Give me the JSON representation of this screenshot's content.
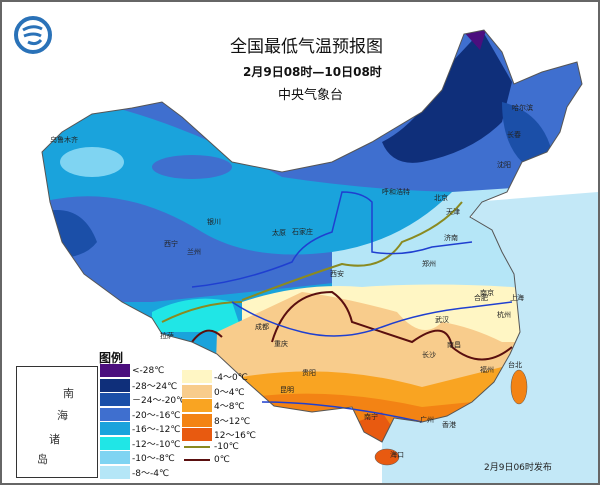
{
  "header": {
    "title": "全国最低气温预报图",
    "period": "2月9日08时—10日08时",
    "agency": "中央气象台"
  },
  "logo": {
    "icon": "cma-logo-icon",
    "color": "#2a72b8"
  },
  "legend": {
    "title": "图例",
    "items": [
      {
        "label": "<-28℃",
        "color": "#4b0f7e"
      },
      {
        "label": "-28～24℃",
        "color": "#0f2f7a"
      },
      {
        "label": "－24～-20℃",
        "color": "#1b4fa8"
      },
      {
        "label": "-20～-16℃",
        "color": "#3f6fcf"
      },
      {
        "label": "-16～-12℃",
        "color": "#1aa3dc"
      },
      {
        "label": "-12～-10℃",
        "color": "#20e6e6"
      },
      {
        "label": "-10～-8℃",
        "color": "#7fd4f2"
      },
      {
        "label": "-8～-4℃",
        "color": "#b5e6f7"
      },
      {
        "label": "-4～0℃",
        "color": "#fff6c4"
      },
      {
        "label": "0～4℃",
        "color": "#f8cc8c"
      },
      {
        "label": "4～8℃",
        "color": "#f9a422"
      },
      {
        "label": "8～12℃",
        "color": "#f38314"
      },
      {
        "label": "12～16℃",
        "color": "#e85a10"
      }
    ],
    "lines": [
      {
        "label": "-10℃",
        "color": "#8a8a20"
      },
      {
        "label": "0℃",
        "color": "#5a0f0f"
      }
    ]
  },
  "inset": {
    "labels": [
      "南",
      "海",
      "诸",
      "岛"
    ]
  },
  "cities": [
    "乌鲁木齐",
    "哈尔滨",
    "长春",
    "沈阳",
    "呼和浩特",
    "北京",
    "天津",
    "银川",
    "太原",
    "石家庄",
    "济南",
    "西宁",
    "兰州",
    "西安",
    "郑州",
    "拉萨",
    "成都",
    "重庆",
    "合肥",
    "南京",
    "上海",
    "武汉",
    "杭州",
    "南昌",
    "长沙",
    "贵阳",
    "福州",
    "台北",
    "昆明",
    "南宁",
    "广州",
    "香港",
    "海口"
  ],
  "issued": "2月9日06时发布",
  "colors": {
    "sea": "#c3e8f7",
    "river": "#1f3fd0"
  }
}
